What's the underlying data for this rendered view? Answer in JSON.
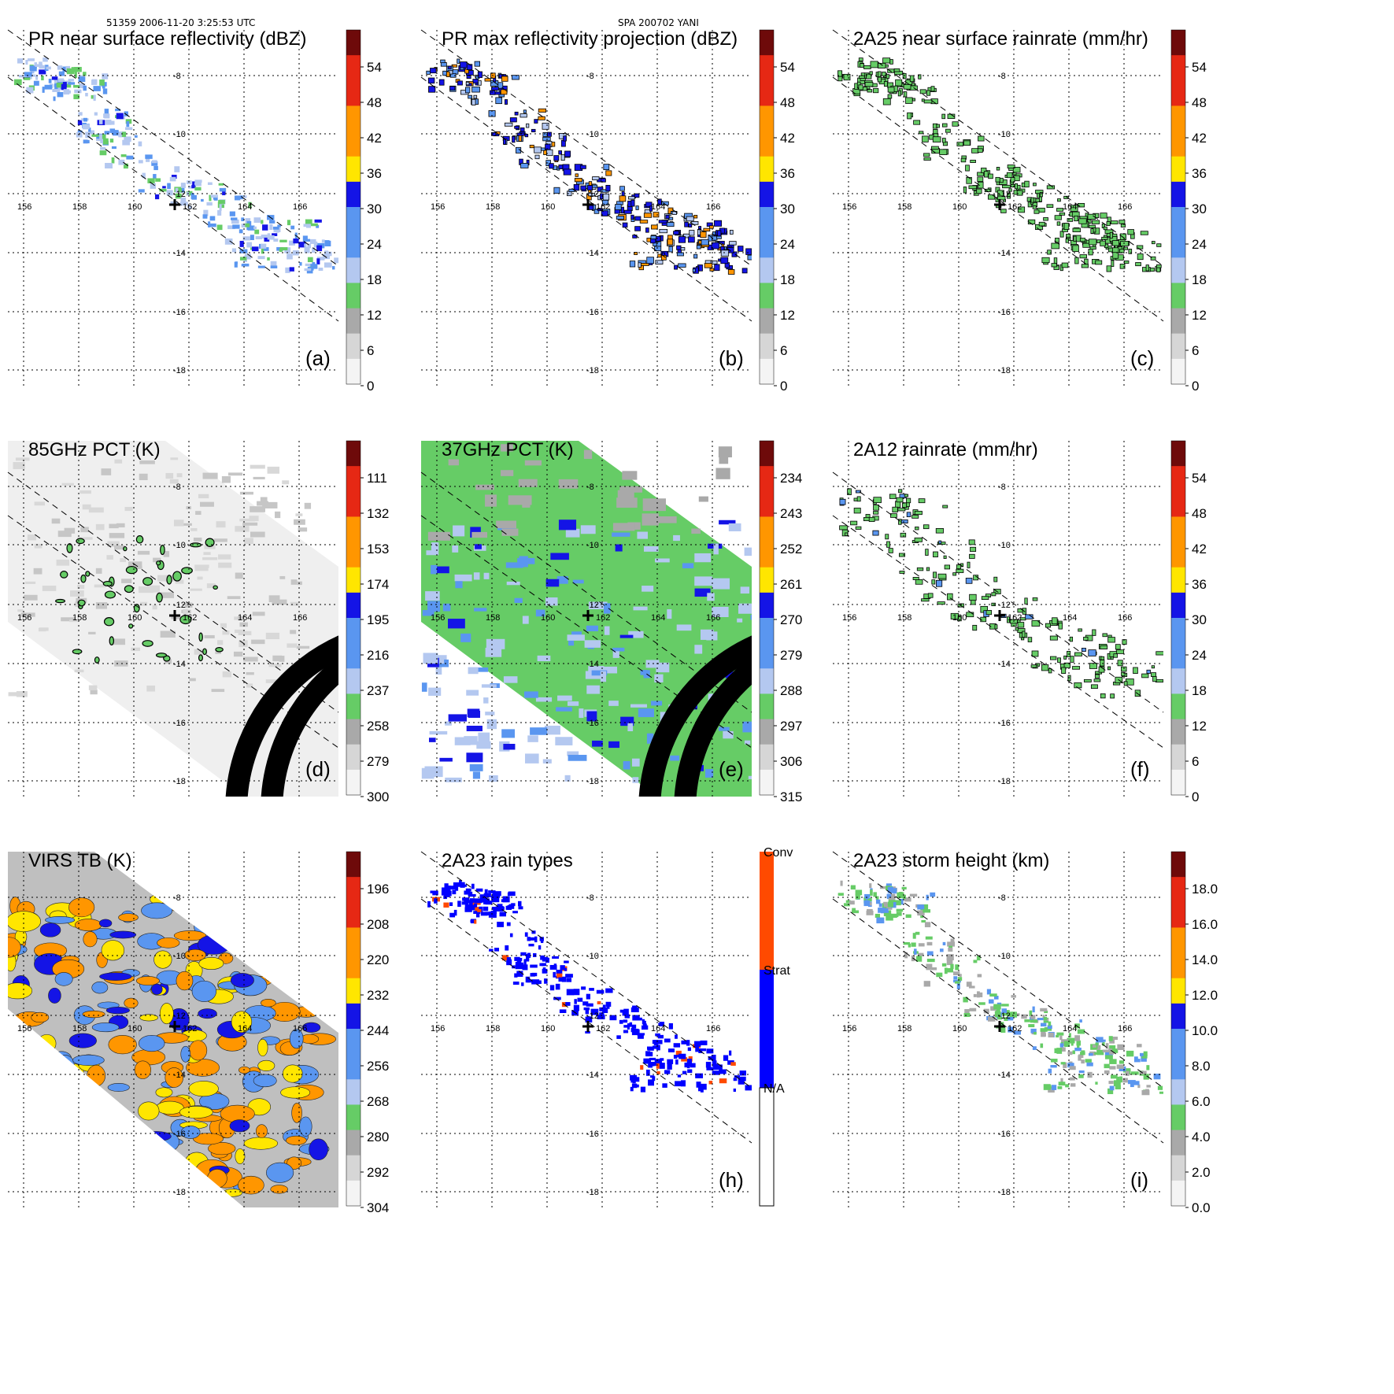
{
  "header": {
    "left": "51359 2006-11-20 3:25:53 UTC",
    "center": "SPA 200702 YANI"
  },
  "axes": {
    "lon_ticks": [
      "156",
      "158",
      "160",
      "162",
      "164",
      "166"
    ],
    "lat_ticks": [
      "-8",
      "-10",
      "-12",
      "-14",
      "-16",
      "-18"
    ]
  },
  "colors": {
    "grey": "#a9a9a9",
    "light_grey": "#d6d6d6",
    "green": "#66cc66",
    "light_blue": "#b4c8f0",
    "mid_blue": "#5a96f0",
    "blue": "#1414e6",
    "yellow": "#ffe600",
    "orange": "#ff9600",
    "red": "#e62814",
    "dark_red": "#6e0a0a",
    "conv": "#ff4a00",
    "strat": "#0000ff"
  },
  "panels": [
    {
      "id": "a",
      "title": "PR near surface reflectivity (dBZ)",
      "label": "(a)",
      "cbar": [
        "54",
        "48",
        "42",
        "36",
        "30",
        "24",
        "18",
        "12",
        "6",
        "0"
      ],
      "swath": "pr",
      "field": "pr"
    },
    {
      "id": "b",
      "title": "PR max reflectivity projection (dBZ)",
      "label": "(b)",
      "cbar": [
        "54",
        "48",
        "42",
        "36",
        "30",
        "24",
        "18",
        "12",
        "6",
        "0"
      ],
      "swath": "pr",
      "field": "pr_outline"
    },
    {
      "id": "c",
      "title": "2A25 near surface rainrate (mm/hr)",
      "label": "(c)",
      "cbar": [
        "54",
        "48",
        "42",
        "36",
        "30",
        "24",
        "18",
        "12",
        "6",
        "0"
      ],
      "swath": "pr",
      "field": "green_outline"
    },
    {
      "id": "d",
      "title": "85GHz PCT (K)",
      "label": "(d)",
      "cbar": [
        "111",
        "132",
        "153",
        "174",
        "195",
        "216",
        "237",
        "258",
        "279",
        "300"
      ],
      "swath": "tmi",
      "field": "pct85"
    },
    {
      "id": "e",
      "title": "37GHz PCT (K)",
      "label": "(e)",
      "cbar": [
        "234",
        "243",
        "252",
        "261",
        "270",
        "279",
        "288",
        "297",
        "306",
        "315"
      ],
      "swath": "tmi",
      "field": "pct37"
    },
    {
      "id": "f",
      "title": "2A12 rainrate (mm/hr)",
      "label": "(f)",
      "cbar": [
        "54",
        "48",
        "42",
        "36",
        "30",
        "24",
        "18",
        "12",
        "6",
        "0"
      ],
      "swath": "tmi",
      "field": "rain12"
    },
    {
      "id": "g",
      "title": "VIRS TB (K)",
      "label": "",
      "cbar": [
        "196",
        "208",
        "220",
        "232",
        "244",
        "256",
        "268",
        "280",
        "292",
        "304"
      ],
      "swath": "virs",
      "field": "virs"
    },
    {
      "id": "h",
      "title": "2A23 rain types",
      "label": "(h)",
      "cbar": [
        "Conv",
        "Strat",
        "N/A"
      ],
      "swath": "pr",
      "field": "raintype"
    },
    {
      "id": "i",
      "title": "2A23 storm height (km)",
      "label": "(i)",
      "cbar": [
        "18.0",
        "16.0",
        "14.0",
        "12.0",
        "10.0",
        "8.0",
        "6.0",
        "4.0",
        "2.0",
        "0.0"
      ],
      "swath": "pr",
      "field": "stormheight"
    }
  ]
}
